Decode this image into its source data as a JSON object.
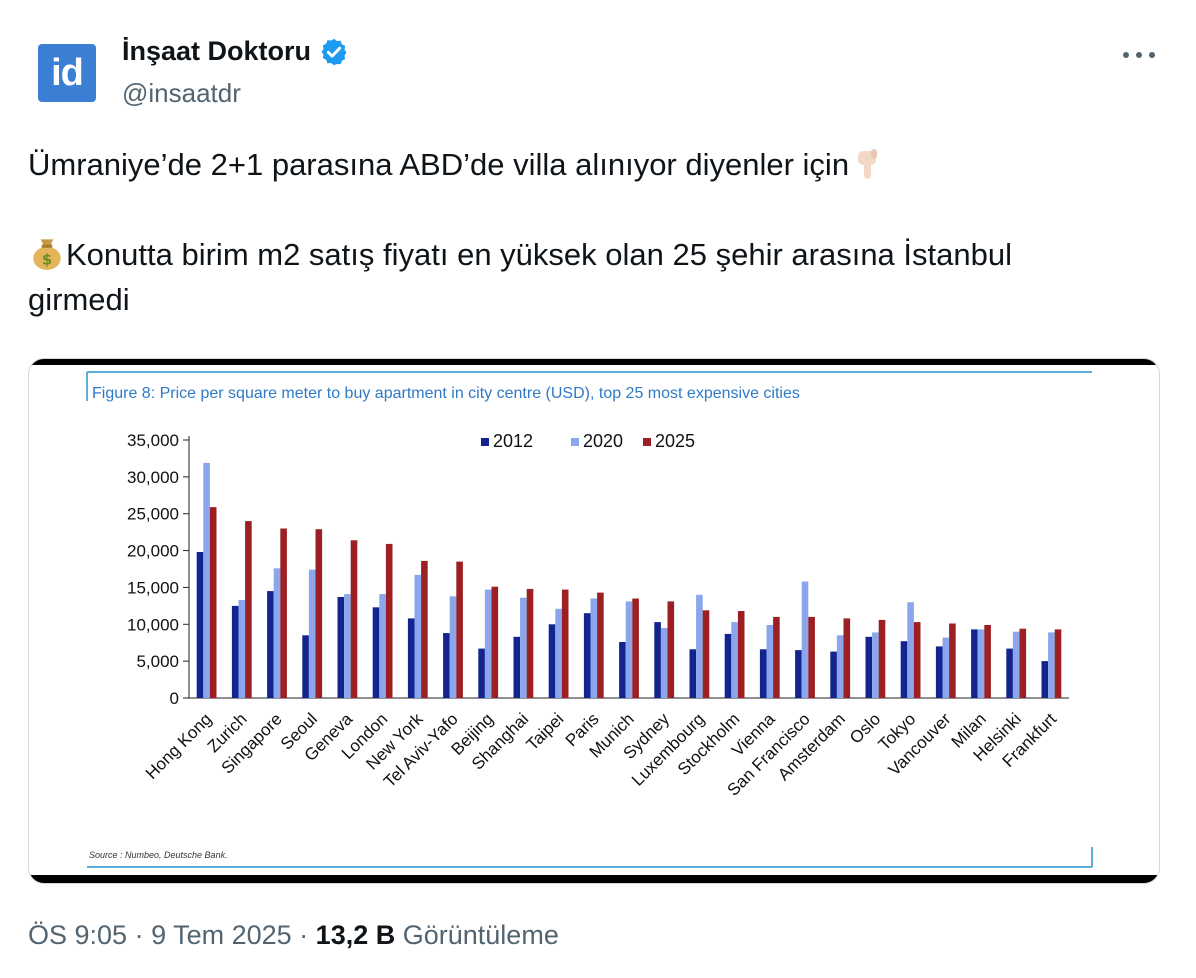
{
  "author": {
    "avatar_text": "id",
    "name": "İnşaat Doktoru",
    "handle": "@insaatdr"
  },
  "tweet": {
    "line1": "Ümraniye’de 2+1 parasına ABD’de villa alınıyor diyenler için",
    "line2": "Konutta birim m2 satış fiyatı en yüksek olan 25 şehir arasına İstanbul",
    "line3": "girmedi",
    "icons": {
      "pointing": "pointing-down-hand-icon",
      "money": "money-bag-icon"
    }
  },
  "meta": {
    "time": "ÖS 9:05",
    "date": "9 Tem 2025",
    "views": "13,2 B",
    "views_label": "Görüntüleme"
  },
  "colors": {
    "verified": "#1d9bf0",
    "series_2012": "#13248f",
    "series_2020": "#8aa6ec",
    "series_2025": "#9c1f24",
    "figure_title": "#2e7ac7"
  },
  "chart_data": {
    "type": "bar",
    "title": "Figure 8: Price per square meter to buy apartment in city centre (USD), top 25 most expensive cities",
    "source": "Source : Numbeo, Deutsche Bank.",
    "xlabel": "",
    "ylabel": "",
    "ylim": [
      0,
      35000
    ],
    "yticks": [
      "0",
      "5,000",
      "10,000",
      "15,000",
      "20,000",
      "25,000",
      "30,000",
      "35,000"
    ],
    "legend_position": "top-center",
    "categories": [
      "Hong Kong",
      "Zurich",
      "Singapore",
      "Seoul",
      "Geneva",
      "London",
      "New York",
      "Tel Aviv-Yafo",
      "Beijing",
      "Shanghai",
      "Taipei",
      "Paris",
      "Munich",
      "Sydney",
      "Luxembourg",
      "Stockholm",
      "Vienna",
      "San Francisco",
      "Amsterdam",
      "Oslo",
      "Tokyo",
      "Vancouver",
      "Milan",
      "Helsinki",
      "Frankfurt"
    ],
    "series": [
      {
        "name": "2012",
        "values": [
          19800,
          12500,
          14500,
          8500,
          13700,
          12300,
          10800,
          8800,
          6700,
          8300,
          10000,
          11500,
          7600,
          10300,
          6600,
          8700,
          6600,
          6500,
          6300,
          8300,
          7700,
          7000,
          9300,
          6700,
          5000
        ]
      },
      {
        "name": "2020",
        "values": [
          31900,
          13300,
          17600,
          17400,
          14100,
          14100,
          16700,
          13800,
          14700,
          13600,
          12100,
          13500,
          13100,
          9500,
          14000,
          10300,
          9900,
          15800,
          8500,
          8900,
          13000,
          8200,
          9300,
          9000,
          8900
        ]
      },
      {
        "name": "2025",
        "values": [
          25900,
          24000,
          23000,
          22900,
          21400,
          20900,
          18600,
          18500,
          15100,
          14800,
          14700,
          14300,
          13500,
          13100,
          11900,
          11800,
          11000,
          11000,
          10800,
          10600,
          10300,
          10100,
          9900,
          9400,
          9300
        ]
      }
    ]
  }
}
